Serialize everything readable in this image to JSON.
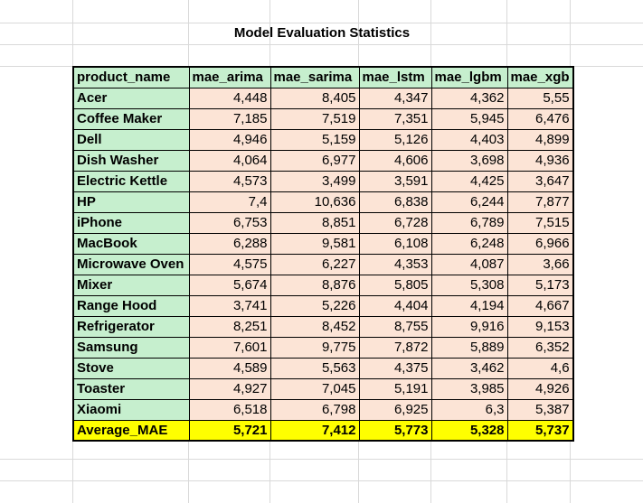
{
  "title": "Model Evaluation Statistics",
  "headers": [
    "product_name",
    "mae_arima",
    "mae_sarima",
    "mae_lstm",
    "mae_lgbm",
    "mae_xgb"
  ],
  "rows": [
    [
      "Acer",
      "4,448",
      "8,405",
      "4,347",
      "4,362",
      "5,55"
    ],
    [
      "Coffee Maker",
      "7,185",
      "7,519",
      "7,351",
      "5,945",
      "6,476"
    ],
    [
      "Dell",
      "4,946",
      "5,159",
      "5,126",
      "4,403",
      "4,899"
    ],
    [
      "Dish Washer",
      "4,064",
      "6,977",
      "4,606",
      "3,698",
      "4,936"
    ],
    [
      "Electric Kettle",
      "4,573",
      "3,499",
      "3,591",
      "4,425",
      "3,647"
    ],
    [
      "HP",
      "7,4",
      "10,636",
      "6,838",
      "6,244",
      "7,877"
    ],
    [
      "iPhone",
      "6,753",
      "8,851",
      "6,728",
      "6,789",
      "7,515"
    ],
    [
      "MacBook",
      "6,288",
      "9,581",
      "6,108",
      "6,248",
      "6,966"
    ],
    [
      "Microwave Oven",
      "4,575",
      "6,227",
      "4,353",
      "4,087",
      "3,66"
    ],
    [
      "Mixer",
      "5,674",
      "8,876",
      "5,805",
      "5,308",
      "5,173"
    ],
    [
      "Range Hood",
      "3,741",
      "5,226",
      "4,404",
      "4,194",
      "4,667"
    ],
    [
      "Refrigerator",
      "8,251",
      "8,452",
      "8,755",
      "9,916",
      "9,153"
    ],
    [
      "Samsung",
      "7,601",
      "9,775",
      "7,872",
      "5,889",
      "6,352"
    ],
    [
      "Stove",
      "4,589",
      "5,563",
      "4,375",
      "3,462",
      "4,6"
    ],
    [
      "Toaster",
      "4,927",
      "7,045",
      "5,191",
      "3,985",
      "4,926"
    ],
    [
      "Xiaomi",
      "6,518",
      "6,798",
      "6,925",
      "6,3",
      "5,387"
    ]
  ],
  "average": [
    "Average_MAE",
    "5,721",
    "7,412",
    "5,773",
    "5,328",
    "5,737"
  ],
  "colors": {
    "header_fill": "#c6efce",
    "name_fill": "#c6efce",
    "value_fill": "#fce4d6",
    "average_fill": "#ffff00",
    "gridline": "#d9d9d9"
  }
}
